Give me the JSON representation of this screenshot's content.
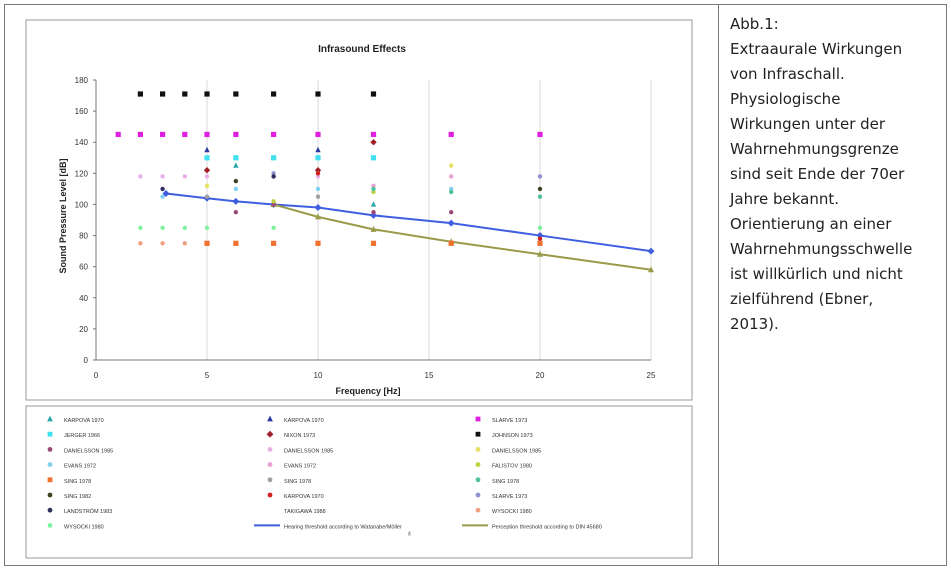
{
  "caption": {
    "lines": [
      "Abb.1:",
      "Extraaurale Wirkungen",
      "von Infraschall.",
      "Physiologische",
      "Wirkungen unter der",
      "Wahrnehmungsgrenze",
      "sind seit Ende der 70er",
      "Jahre bekannt.",
      "Orientierung an einer",
      "Wahrnehmungsschwelle",
      "ist willkürlich und nicht",
      "zielführend (Ebner,",
      "2013)."
    ]
  },
  "colors": {
    "hearing_threshold": "#3f5fe0",
    "perception_threshold": "#9a9a4a",
    "border": "#7a7a7a",
    "grid": "#d8d8d8"
  },
  "chart_data": {
    "type": "scatter",
    "title": "Infrasound Effects",
    "xlabel": "Frequency [Hz]",
    "ylabel": "Sound Pressure Level [dB]",
    "xlim": [
      0,
      25
    ],
    "ylim": [
      0,
      180
    ],
    "xticks": [
      0,
      5,
      10,
      15,
      20,
      25
    ],
    "yticks": [
      0,
      20,
      40,
      60,
      80,
      100,
      120,
      140,
      160,
      180
    ],
    "grid": "vertical",
    "legend_position": "bottom",
    "series": [
      {
        "name": "KARPOVA 1970",
        "color": "#2aa6a6",
        "marker": "triangle",
        "points": [
          [
            6.3,
            125
          ],
          [
            10,
            130
          ],
          [
            12.5,
            100
          ]
        ]
      },
      {
        "name": "KARPOVA 1970",
        "color": "#2a3aa0",
        "marker": "triangle",
        "points": [
          [
            5,
            135
          ],
          [
            10,
            135
          ]
        ]
      },
      {
        "name": "SLARVE 1973",
        "color": "#e020e0",
        "marker": "square",
        "points": [
          [
            1,
            145
          ],
          [
            2,
            145
          ],
          [
            3,
            145
          ],
          [
            4,
            145
          ],
          [
            5,
            145
          ],
          [
            6.3,
            145
          ],
          [
            8,
            145
          ],
          [
            10,
            145
          ],
          [
            12.5,
            145
          ],
          [
            16,
            145
          ],
          [
            20,
            145
          ]
        ]
      },
      {
        "name": "JERGER 1966",
        "color": "#40e0f0",
        "marker": "square",
        "points": [
          [
            5,
            130
          ],
          [
            6.3,
            130
          ],
          [
            8,
            130
          ],
          [
            10,
            130
          ],
          [
            12.5,
            130
          ]
        ]
      },
      {
        "name": "NIXON 1973",
        "color": "#a0202a",
        "marker": "diamond",
        "points": [
          [
            5,
            122
          ],
          [
            10,
            122
          ],
          [
            12.5,
            140
          ]
        ]
      },
      {
        "name": "JOHNSON 1973",
        "color": "#111111",
        "marker": "square",
        "points": [
          [
            2,
            171
          ],
          [
            3,
            171
          ],
          [
            4,
            171
          ],
          [
            5,
            171
          ],
          [
            6.3,
            171
          ],
          [
            8,
            171
          ],
          [
            10,
            171
          ],
          [
            12.5,
            171
          ]
        ]
      },
      {
        "name": "DANIELSSON 1985",
        "color": "#9a4a7a",
        "marker": "circle",
        "points": [
          [
            6.3,
            95
          ],
          [
            8,
            100
          ],
          [
            12.5,
            95
          ],
          [
            16,
            95
          ]
        ]
      },
      {
        "name": "DANIELSSON 1985",
        "color": "#e8b0e8",
        "marker": "circle",
        "points": [
          [
            2,
            118
          ],
          [
            3,
            118
          ],
          [
            4,
            118
          ],
          [
            5,
            118
          ],
          [
            8,
            118
          ],
          [
            10,
            118
          ]
        ]
      },
      {
        "name": "DANIELSSON 1985",
        "color": "#e8e060",
        "marker": "circle",
        "points": [
          [
            5,
            112
          ],
          [
            10,
            120
          ],
          [
            16,
            125
          ]
        ]
      },
      {
        "name": "EVANS 1972",
        "color": "#80d0f0",
        "marker": "circle",
        "points": [
          [
            3,
            105
          ],
          [
            6.3,
            110
          ],
          [
            10,
            110
          ],
          [
            16,
            110
          ]
        ]
      },
      {
        "name": "EVANS 1972",
        "color": "#e8a0d0",
        "marker": "circle",
        "points": [
          [
            12.5,
            112
          ],
          [
            16,
            118
          ]
        ]
      },
      {
        "name": "FALISTOV 1980",
        "color": "#c0d040",
        "marker": "circle",
        "points": [
          [
            8,
            102
          ],
          [
            12.5,
            108
          ]
        ]
      },
      {
        "name": "SING 1978",
        "color": "#f07030",
        "marker": "square",
        "points": [
          [
            5,
            75
          ],
          [
            6.3,
            75
          ],
          [
            8,
            75
          ],
          [
            10,
            75
          ],
          [
            12.5,
            75
          ],
          [
            16,
            75
          ],
          [
            20,
            75
          ]
        ]
      },
      {
        "name": "SING 1978",
        "color": "#a0a0a0",
        "marker": "circle",
        "points": [
          [
            5,
            105
          ],
          [
            10,
            105
          ]
        ]
      },
      {
        "name": "SING 1978",
        "color": "#50c0a0",
        "marker": "circle",
        "points": [
          [
            12.5,
            110
          ],
          [
            16,
            108
          ],
          [
            20,
            105
          ]
        ]
      },
      {
        "name": "SING 1982",
        "color": "#404020",
        "marker": "circle",
        "points": [
          [
            6.3,
            115
          ],
          [
            20,
            110
          ]
        ]
      },
      {
        "name": "KARPOVA 1970",
        "color": "#d02020",
        "marker": "circle",
        "points": [
          [
            10,
            120
          ],
          [
            20,
            78
          ]
        ]
      },
      {
        "name": "SLARVE 1973",
        "color": "#9090d0",
        "marker": "circle",
        "points": [
          [
            8,
            120
          ],
          [
            20,
            118
          ]
        ]
      },
      {
        "name": "LANDSTRÖM 1983",
        "color": "#303060",
        "marker": "circle",
        "points": [
          [
            3,
            110
          ],
          [
            8,
            118
          ]
        ]
      },
      {
        "name": "TAKIGAWA 1988",
        "color": "#ffffff",
        "marker": "circle",
        "points": []
      },
      {
        "name": "WYSOCKI 1980",
        "color": "#f0a080",
        "marker": "circle",
        "points": [
          [
            2,
            75
          ],
          [
            3,
            75
          ],
          [
            4,
            75
          ]
        ]
      },
      {
        "name": "WYSOCKI 1980",
        "color": "#80f0a0",
        "marker": "circle",
        "points": [
          [
            2,
            85
          ],
          [
            3,
            85
          ],
          [
            4,
            85
          ],
          [
            5,
            85
          ],
          [
            8,
            85
          ],
          [
            20,
            85
          ]
        ]
      }
    ],
    "lines": [
      {
        "name": "Hearing threshold according to Watanabe/Möller",
        "color": "#3f5fe0",
        "x": [
          3.15,
          5,
          6.3,
          8,
          10,
          12.5,
          16,
          20,
          25
        ],
        "y": [
          107,
          104,
          102,
          100,
          98,
          93,
          88,
          80,
          70
        ]
      },
      {
        "name": "Perception threshold according to DIN 45680",
        "color": "#9a9a4a",
        "x": [
          8,
          10,
          12.5,
          16,
          20,
          25
        ],
        "y": [
          100,
          92,
          84,
          76,
          68,
          58
        ]
      }
    ],
    "legend_items": [
      "KARPOVA 1970",
      "KARPOVA 1970",
      "SLARVE 1973",
      "JERGER 1966",
      "NIXON 1973",
      "JOHNSON 1973",
      "DANIELSSON 1985",
      "DANIELSSON 1985",
      "DANIELSSON 1985",
      "EVANS 1972",
      "EVANS 1972",
      "FALISTOV 1980",
      "SING 1978",
      "SING 1978",
      "SING 1978",
      "SING 1982",
      "KARPOVA 1970",
      "SLARVE 1973",
      "LANDSTRÖM 1983",
      "TAKIGAWA 1988",
      "WYSOCKI 1980",
      "WYSOCKI 1980",
      "Hearing threshold according to Watanabe/Möller",
      "Perception threshold according to DIN 45680"
    ]
  }
}
